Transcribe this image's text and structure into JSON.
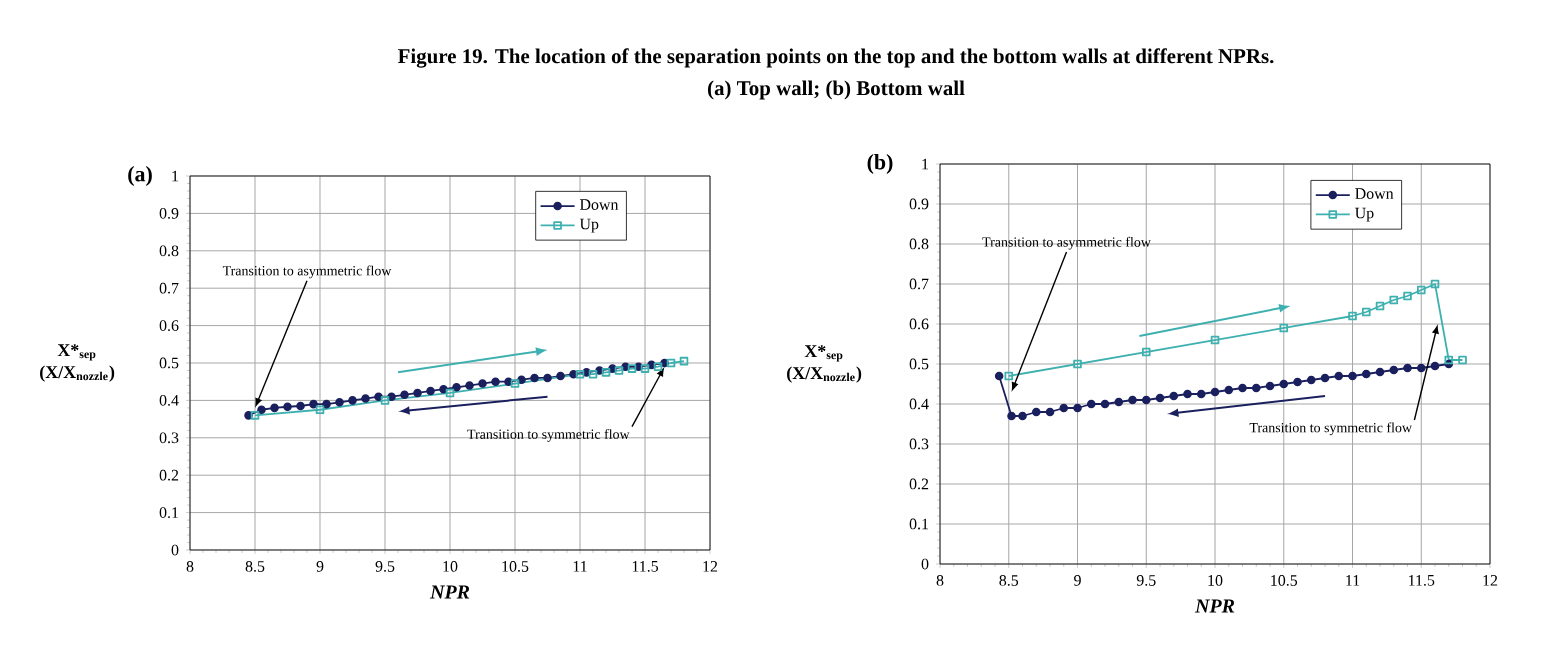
{
  "chart_data": [
    {
      "type": "line",
      "title": "Figure 19. The location of the separation points on the top and the bottom walls at different NPRs.",
      "subtitle": "(a) Top wall; (b) Bottom wall",
      "xlabel": "NPR",
      "ylabel": "X*$_{sep}$ (X/X$_{nozzle}$)",
      "xlim": [
        8,
        12
      ],
      "xticks": [
        8,
        8.5,
        9,
        9.5,
        10,
        10.5,
        11,
        11.5,
        12
      ],
      "ylim": [
        0,
        1
      ],
      "yticks": [
        0,
        0.1,
        0.2,
        0.3,
        0.4,
        0.5,
        0.6,
        0.7,
        0.8,
        0.9,
        1
      ],
      "grid": true,
      "legend": "top right",
      "series": [
        {
          "name": "Down",
          "color": "#1a1f5e",
          "marker": "circle",
          "x": [
            8.45,
            8.55,
            8.65,
            8.75,
            8.85,
            8.95,
            9.05,
            9.15,
            9.25,
            9.35,
            9.45,
            9.55,
            9.65,
            9.75,
            9.85,
            9.95,
            10.05,
            10.15,
            10.25,
            10.35,
            10.45,
            10.55,
            10.65,
            10.75,
            10.85,
            10.95,
            11.05,
            11.15,
            11.25,
            11.35,
            11.45,
            11.55,
            11.65
          ],
          "values": [
            0.36,
            0.375,
            0.38,
            0.383,
            0.385,
            0.39,
            0.39,
            0.395,
            0.4,
            0.405,
            0.41,
            0.41,
            0.415,
            0.42,
            0.425,
            0.43,
            0.435,
            0.44,
            0.445,
            0.45,
            0.45,
            0.455,
            0.46,
            0.46,
            0.465,
            0.47,
            0.475,
            0.48,
            0.485,
            0.49,
            0.49,
            0.495,
            0.5
          ]
        },
        {
          "name": "Up",
          "color": "#3fb0b0",
          "marker": "square",
          "x": [
            8.5,
            9,
            9.5,
            10,
            10.5,
            11,
            11.1,
            11.2,
            11.3,
            11.4,
            11.5,
            11.6,
            11.7,
            11.8
          ],
          "values": [
            0.36,
            0.375,
            0.4,
            0.42,
            0.445,
            0.47,
            0.47,
            0.475,
            0.48,
            0.485,
            0.485,
            0.49,
            0.5,
            0.505
          ]
        }
      ],
      "annotations": [
        "(a)",
        {
          "text": "Transition to asymmetric flow",
          "x": 8.5,
          "y": 0.38
        },
        {
          "text": "Transition to symmetric flow",
          "x": 11.65,
          "y": 0.49
        }
      ]
    },
    {
      "type": "line",
      "xlabel": "NPR",
      "ylabel": "X*$_{sep}$ (X/X$_{nozzle}$)",
      "xlim": [
        8,
        12
      ],
      "xticks": [
        8,
        8.5,
        9,
        9.5,
        10,
        10.5,
        11,
        11.5,
        12
      ],
      "ylim": [
        0,
        1
      ],
      "yticks": [
        0,
        0.1,
        0.2,
        0.3,
        0.4,
        0.5,
        0.6,
        0.7,
        0.8,
        0.9,
        1
      ],
      "grid": true,
      "legend": "top right",
      "series": [
        {
          "name": "Down",
          "color": "#1a1f5e",
          "marker": "circle",
          "x": [
            8.43,
            8.52,
            8.6,
            8.7,
            8.8,
            8.9,
            9.0,
            9.1,
            9.2,
            9.3,
            9.4,
            9.5,
            9.6,
            9.7,
            9.8,
            9.9,
            10.0,
            10.1,
            10.2,
            10.3,
            10.4,
            10.5,
            10.6,
            10.7,
            10.8,
            10.9,
            11.0,
            11.1,
            11.2,
            11.3,
            11.4,
            11.5,
            11.6,
            11.7
          ],
          "values": [
            0.47,
            0.37,
            0.37,
            0.38,
            0.38,
            0.39,
            0.39,
            0.4,
            0.4,
            0.405,
            0.41,
            0.41,
            0.415,
            0.42,
            0.425,
            0.425,
            0.43,
            0.435,
            0.44,
            0.44,
            0.445,
            0.45,
            0.455,
            0.46,
            0.465,
            0.47,
            0.47,
            0.475,
            0.48,
            0.485,
            0.49,
            0.49,
            0.495,
            0.5
          ]
        },
        {
          "name": "Up",
          "color": "#3fb0b0",
          "marker": "square",
          "x": [
            8.5,
            9,
            9.5,
            10,
            10.5,
            11,
            11.1,
            11.2,
            11.3,
            11.4,
            11.5,
            11.6,
            11.7,
            11.8
          ],
          "values": [
            0.47,
            0.5,
            0.53,
            0.56,
            0.59,
            0.62,
            0.63,
            0.645,
            0.66,
            0.67,
            0.685,
            0.7,
            0.51,
            0.51
          ]
        }
      ],
      "annotations": [
        "(b)",
        {
          "text": "Transition to asymmetric flow",
          "x": 8.52,
          "y": 0.43
        },
        {
          "text": "Transition to symmetric flow",
          "x": 11.62,
          "y": 0.6
        }
      ]
    }
  ]
}
